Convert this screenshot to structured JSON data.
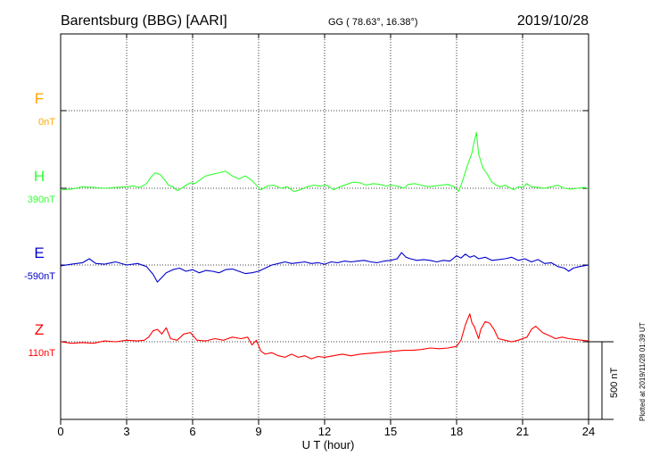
{
  "header": {
    "station": "Barentsburg (BBG)  [AARI]",
    "coords": "GG ( 78.63°,  16.38°)",
    "date": "2019/10/28"
  },
  "plot_stamp": "Plotted at 2019/11/28 01:39 UT",
  "scale_bar_label": "500 nT",
  "chart_data": {
    "type": "line",
    "xlabel": "U T (hour)",
    "ylabel": "",
    "xlim": [
      0,
      24
    ],
    "xticks": [
      "0",
      "3",
      "6",
      "9",
      "12",
      "15",
      "18",
      "21",
      "24"
    ],
    "grid": true,
    "y_units": "nT",
    "scale_bar_nT": 500,
    "series": [
      {
        "name": "F",
        "baseline": "0nT",
        "color": "#ffa500",
        "x": [],
        "y": []
      },
      {
        "name": "H",
        "baseline": "390nT",
        "color": "#33ff33",
        "x": [
          0,
          0.5,
          1,
          1.5,
          2,
          2.5,
          3,
          3.3,
          3.6,
          3.9,
          4.1,
          4.3,
          4.5,
          4.7,
          4.9,
          5.1,
          5.3,
          5.5,
          5.7,
          5.9,
          6.1,
          6.3,
          6.6,
          6.9,
          7.2,
          7.5,
          7.8,
          8.1,
          8.4,
          8.7,
          8.9,
          9.1,
          9.4,
          9.7,
          10,
          10.3,
          10.6,
          10.9,
          11.2,
          11.5,
          11.8,
          12.1,
          12.4,
          12.7,
          13,
          13.3,
          13.6,
          13.9,
          14.2,
          14.5,
          14.8,
          15.1,
          15.4,
          15.6,
          15.8,
          16.1,
          16.4,
          16.7,
          17,
          17.3,
          17.6,
          17.9,
          18.1,
          18.3,
          18.5,
          18.7,
          18.8,
          18.9,
          19,
          19.2,
          19.4,
          19.6,
          19.8,
          20,
          20.2,
          20.4,
          20.6,
          20.8,
          21,
          21.2,
          21.4,
          21.7,
          22,
          22.3,
          22.6,
          22.9,
          23.2,
          23.5,
          23.8,
          24
        ],
        "y": [
          -10,
          -5,
          10,
          5,
          0,
          5,
          10,
          15,
          5,
          30,
          70,
          100,
          90,
          60,
          20,
          10,
          -15,
          0,
          20,
          35,
          30,
          50,
          80,
          90,
          100,
          110,
          80,
          60,
          80,
          50,
          20,
          -10,
          15,
          20,
          0,
          10,
          -20,
          -10,
          10,
          20,
          15,
          20,
          -10,
          10,
          25,
          40,
          35,
          20,
          30,
          25,
          15,
          20,
          10,
          0,
          25,
          30,
          20,
          10,
          15,
          20,
          25,
          10,
          -20,
          60,
          150,
          230,
          300,
          360,
          220,
          130,
          90,
          40,
          20,
          10,
          20,
          5,
          -10,
          10,
          5,
          30,
          10,
          5,
          0,
          10,
          20,
          0,
          -5,
          0,
          5,
          0
        ]
      },
      {
        "name": "E",
        "baseline": "-590nT",
        "color": "#0000cc",
        "x": [
          0,
          0.5,
          1,
          1.3,
          1.6,
          2,
          2.5,
          3,
          3.5,
          3.9,
          4.2,
          4.4,
          4.6,
          4.8,
          5.1,
          5.4,
          5.7,
          6,
          6.3,
          6.6,
          6.9,
          7.2,
          7.5,
          7.8,
          8.1,
          8.4,
          8.7,
          9,
          9.3,
          9.6,
          9.9,
          10.2,
          10.5,
          10.8,
          11.1,
          11.4,
          11.7,
          12,
          12.3,
          12.6,
          12.9,
          13.2,
          13.5,
          13.8,
          14.1,
          14.4,
          14.7,
          15,
          15.3,
          15.5,
          15.7,
          15.9,
          16.2,
          16.5,
          16.8,
          17.1,
          17.4,
          17.7,
          18,
          18.2,
          18.4,
          18.6,
          18.8,
          19,
          19.3,
          19.6,
          19.9,
          20.2,
          20.5,
          20.8,
          21.1,
          21.4,
          21.7,
          22,
          22.3,
          22.6,
          22.9,
          23.1,
          23.3,
          23.6,
          24
        ],
        "y": [
          -5,
          5,
          15,
          40,
          10,
          5,
          20,
          0,
          10,
          -10,
          -60,
          -110,
          -80,
          -50,
          -30,
          -20,
          -40,
          -30,
          -50,
          -35,
          -40,
          -50,
          -30,
          -25,
          -40,
          -55,
          -50,
          -40,
          -20,
          0,
          10,
          20,
          10,
          15,
          20,
          10,
          15,
          5,
          20,
          15,
          25,
          20,
          25,
          30,
          20,
          15,
          25,
          30,
          40,
          80,
          50,
          40,
          30,
          35,
          30,
          20,
          30,
          25,
          60,
          45,
          70,
          50,
          60,
          40,
          50,
          30,
          35,
          40,
          50,
          30,
          40,
          20,
          35,
          10,
          15,
          -10,
          -20,
          -40,
          -20,
          -10,
          0
        ]
      },
      {
        "name": "Z",
        "baseline": "110nT",
        "color": "#ff0000",
        "x": [
          0,
          0.5,
          1,
          1.5,
          2,
          2.5,
          3,
          3.5,
          3.8,
          4,
          4.2,
          4.4,
          4.6,
          4.8,
          5,
          5.3,
          5.6,
          5.9,
          6.2,
          6.6,
          7,
          7.4,
          7.8,
          8.2,
          8.5,
          8.7,
          8.9,
          9.1,
          9.3,
          9.6,
          9.9,
          10.2,
          10.5,
          10.8,
          11.1,
          11.4,
          11.7,
          12,
          12.4,
          12.8,
          13.2,
          13.6,
          14,
          14.4,
          14.8,
          15.2,
          15.6,
          16,
          16.4,
          16.8,
          17.2,
          17.6,
          18,
          18.2,
          18.4,
          18.6,
          18.7,
          18.8,
          18.9,
          19,
          19.1,
          19.3,
          19.5,
          19.7,
          19.9,
          20.2,
          20.5,
          20.8,
          21,
          21.2,
          21.4,
          21.6,
          21.9,
          22.2,
          22.5,
          22.8,
          23.1,
          23.4,
          23.7,
          24
        ],
        "y": [
          0,
          -10,
          -5,
          -10,
          5,
          0,
          10,
          5,
          10,
          30,
          70,
          80,
          50,
          90,
          20,
          10,
          50,
          60,
          10,
          5,
          20,
          10,
          30,
          20,
          30,
          -20,
          10,
          -60,
          -80,
          -70,
          -90,
          -100,
          -80,
          -100,
          -90,
          -110,
          -95,
          -100,
          -90,
          -80,
          -90,
          -80,
          -75,
          -70,
          -65,
          -60,
          -55,
          -55,
          -50,
          -40,
          -45,
          -40,
          -30,
          10,
          110,
          180,
          120,
          100,
          60,
          20,
          80,
          130,
          120,
          80,
          20,
          10,
          0,
          10,
          20,
          30,
          80,
          100,
          60,
          40,
          20,
          30,
          20,
          15,
          10,
          5
        ]
      }
    ]
  }
}
